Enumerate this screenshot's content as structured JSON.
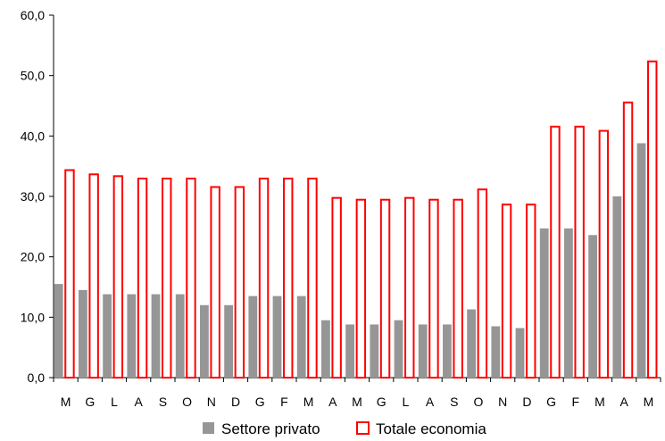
{
  "chart_data": {
    "type": "bar",
    "categories": [
      "M",
      "G",
      "L",
      "A",
      "S",
      "O",
      "N",
      "D",
      "G",
      "F",
      "M",
      "A",
      "M",
      "G",
      "L",
      "A",
      "S",
      "O",
      "N",
      "D",
      "G",
      "F",
      "M",
      "A",
      "M"
    ],
    "series": [
      {
        "name": "Settore privato",
        "color": "#969696",
        "style": "filled",
        "values": [
          15.5,
          14.5,
          13.8,
          13.8,
          13.8,
          13.8,
          12.0,
          12.0,
          13.5,
          13.5,
          13.5,
          9.5,
          8.8,
          8.8,
          9.5,
          8.8,
          8.8,
          11.3,
          8.5,
          8.2,
          24.7,
          24.7,
          23.6,
          30.0,
          38.8
        ]
      },
      {
        "name": "Totale economia",
        "color": "#ff0000",
        "style": "outline",
        "values": [
          34.5,
          33.8,
          33.5,
          33.1,
          33.1,
          33.1,
          31.7,
          31.7,
          33.1,
          33.1,
          33.1,
          29.9,
          29.6,
          29.6,
          29.9,
          29.6,
          29.6,
          31.3,
          28.8,
          28.8,
          41.7,
          41.7,
          41.0,
          45.7,
          52.5
        ]
      }
    ],
    "ylim": [
      0,
      60
    ],
    "yticks": [
      "0,0",
      "10,0",
      "20,0",
      "30,0",
      "40,0",
      "50,0",
      "60,0"
    ],
    "grid": false,
    "legend_position": "bottom-center"
  }
}
